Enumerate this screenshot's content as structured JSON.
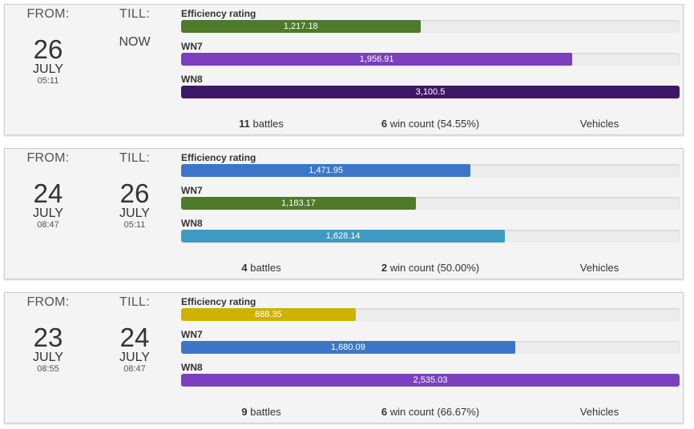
{
  "labels": {
    "from": "FROM:",
    "till": "TILL:",
    "battles": "battles",
    "win_count": "win count"
  },
  "sessions": [
    {
      "from": {
        "day": "26",
        "month": "JULY",
        "time": "05:11"
      },
      "till_now": "NOW",
      "metrics": [
        {
          "label": "Efficiency rating",
          "value": "1,217.18",
          "percent": 48.0,
          "color": "#4e7a2a"
        },
        {
          "label": "WN7",
          "value": "1,956.91",
          "percent": 78.5,
          "color": "#7b3fbf"
        },
        {
          "label": "WN8",
          "value": "3,100.5",
          "percent": 100,
          "color": "#3f1769"
        }
      ],
      "battles": "11",
      "wins": "6",
      "win_pct": "(54.55%)",
      "vehicles": "Vehicles"
    },
    {
      "from": {
        "day": "24",
        "month": "JULY",
        "time": "08:47"
      },
      "till": {
        "day": "26",
        "month": "JULY",
        "time": "05:11"
      },
      "metrics": [
        {
          "label": "Efficiency rating",
          "value": "1,471.95",
          "percent": 58.1,
          "color": "#3b76c8"
        },
        {
          "label": "WN7",
          "value": "1,183.17",
          "percent": 47.1,
          "color": "#4e7a2a"
        },
        {
          "label": "WN8",
          "value": "1,628.14",
          "percent": 65.0,
          "color": "#3d9bc3"
        }
      ],
      "battles": "4",
      "wins": "2",
      "win_pct": "(50.00%)",
      "vehicles": "Vehicles"
    },
    {
      "from": {
        "day": "23",
        "month": "JULY",
        "time": "08:55"
      },
      "till": {
        "day": "24",
        "month": "JULY",
        "time": "08:47"
      },
      "metrics": [
        {
          "label": "Efficiency rating",
          "value": "888.35",
          "percent": 35.0,
          "color": "#cdb300"
        },
        {
          "label": "WN7",
          "value": "1,680.09",
          "percent": 67.0,
          "color": "#3b76c8"
        },
        {
          "label": "WN8",
          "value": "2,535.03",
          "percent": 100,
          "color": "#7b3fbf"
        }
      ],
      "battles": "9",
      "wins": "6",
      "win_pct": "(66.67%)",
      "vehicles": "Vehicles"
    }
  ]
}
